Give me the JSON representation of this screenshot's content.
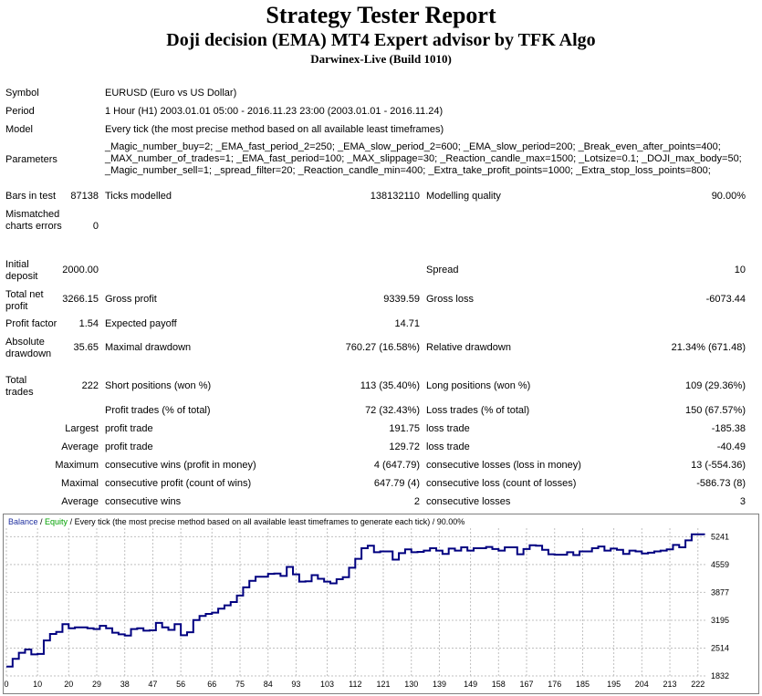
{
  "header": {
    "title": "Strategy Tester Report",
    "subtitle": "Doji decision (EMA) MT4 Expert advisor by TFK Algo",
    "server": "Darwinex-Live (Build 1010)"
  },
  "info": {
    "symbol_label": "Symbol",
    "symbol_value": "EURUSD (Euro vs US Dollar)",
    "period_label": "Period",
    "period_value": "1 Hour (H1) 2003.01.01 05:00 - 2016.11.23 23:00 (2003.01.01 - 2016.11.24)",
    "model_label": "Model",
    "model_value": "Every tick (the most precise method based on all available least timeframes)",
    "parameters_label": "Parameters",
    "parameters_line1": "_Magic_number_buy=2; _EMA_fast_period_2=250; _EMA_slow_period_2=600; _EMA_slow_period=200; _Break_even_after_points=400;",
    "parameters_line2": "_MAX_number_of_trades=1; _EMA_fast_period=100; _MAX_slippage=30; _Reaction_candle_max=1500; _Lotsize=0.1; _DOJI_max_body=50;",
    "parameters_line3": "_Magic_number_sell=1; _spread_filter=20; _Reaction_candle_min=400; _Extra_take_profit_points=1000; _Extra_stop_loss_points=800;"
  },
  "stats": {
    "bars_label": "Bars in test",
    "bars_value": "87138",
    "ticks_label": "Ticks modelled",
    "ticks_value": "138132110",
    "quality_label": "Modelling quality",
    "quality_value": "90.00%",
    "mismatch_label": "Mismatched charts errors",
    "mismatch_value": "0",
    "deposit_label": "Initial deposit",
    "deposit_value": "2000.00",
    "spread_label": "Spread",
    "spread_value": "10",
    "netprofit_label": "Total net profit",
    "netprofit_value": "3266.15",
    "grossprofit_label": "Gross profit",
    "grossprofit_value": "9339.59",
    "grossloss_label": "Gross loss",
    "grossloss_value": "-6073.44",
    "pf_label": "Profit factor",
    "pf_value": "1.54",
    "payoff_label": "Expected payoff",
    "payoff_value": "14.71",
    "absdd_label": "Absolute drawdown",
    "absdd_value": "35.65",
    "maxdd_label": "Maximal drawdown",
    "maxdd_value": "760.27 (16.58%)",
    "reldd_label": "Relative drawdown",
    "reldd_value": "21.34% (671.48)",
    "trades_label": "Total trades",
    "trades_value": "222",
    "short_label": "Short positions (won %)",
    "short_value": "113 (35.40%)",
    "long_label": "Long positions (won %)",
    "long_value": "109 (29.36%)",
    "profittr_label": "Profit trades (% of total)",
    "profittr_value": "72 (32.43%)",
    "losstr_label": "Loss trades (% of total)",
    "losstr_value": "150 (67.57%)",
    "largest_label": "Largest",
    "largest_profit_label": "profit trade",
    "largest_profit_value": "191.75",
    "largest_loss_label": "loss trade",
    "largest_loss_value": "-185.38",
    "average_label": "Average",
    "average_profit_label": "profit trade",
    "average_profit_value": "129.72",
    "average_loss_label": "loss trade",
    "average_loss_value": "-40.49",
    "maximum_label": "Maximum",
    "max_wins_label": "consecutive wins (profit in money)",
    "max_wins_value": "4 (647.79)",
    "max_losses_label": "consecutive losses (loss in money)",
    "max_losses_value": "13 (-554.36)",
    "maximal_label": "Maximal",
    "maximal_profit_label": "consecutive profit (count of wins)",
    "maximal_profit_value": "647.79 (4)",
    "maximal_loss_label": "consecutive loss (count of losses)",
    "maximal_loss_value": "-586.73 (8)",
    "avgcons_label": "Average",
    "avg_wins_label": "consecutive wins",
    "avg_wins_value": "2",
    "avg_losses_label": "consecutive losses",
    "avg_losses_value": "3"
  },
  "chart_data": {
    "type": "line",
    "legend_balance": "Balance",
    "legend_sep": " / ",
    "legend_equity": "Equity",
    "legend_rest": " / Every tick (the most precise method based on all available least timeframes to generate each tick) / 90.00%",
    "colors": {
      "balance": "#000080",
      "equity": "#00a000",
      "grid": "#c0c0c0",
      "legend_balance": "#1f2f9f"
    },
    "grid": true,
    "xlim": [
      0,
      225
    ],
    "ylim": [
      1832,
      5450
    ],
    "x_ticks": [
      0,
      10,
      20,
      29,
      38,
      47,
      56,
      66,
      75,
      84,
      93,
      103,
      112,
      121,
      130,
      139,
      149,
      158,
      167,
      176,
      185,
      195,
      204,
      213,
      222
    ],
    "y_ticks": [
      1832,
      2514,
      3195,
      3877,
      4559,
      5241
    ],
    "series": [
      {
        "name": "Balance",
        "x": [
          0,
          2,
          4,
          6,
          8,
          10,
          12,
          14,
          16,
          18,
          20,
          22,
          24,
          26,
          28,
          30,
          32,
          34,
          36,
          38,
          40,
          42,
          44,
          46,
          48,
          50,
          52,
          54,
          56,
          58,
          60,
          62,
          64,
          66,
          68,
          70,
          72,
          74,
          76,
          78,
          80,
          82,
          84,
          86,
          88,
          90,
          92,
          94,
          96,
          98,
          100,
          102,
          104,
          106,
          108,
          110,
          112,
          114,
          116,
          118,
          120,
          122,
          124,
          126,
          128,
          130,
          132,
          134,
          136,
          138,
          140,
          142,
          144,
          146,
          148,
          150,
          152,
          154,
          156,
          158,
          160,
          162,
          164,
          166,
          168,
          170,
          172,
          174,
          176,
          178,
          180,
          182,
          184,
          186,
          188,
          190,
          192,
          194,
          196,
          198,
          200,
          202,
          204,
          206,
          208,
          210,
          212,
          214,
          216,
          218,
          220,
          222,
          224
        ],
        "values": [
          2060,
          2250,
          2400,
          2480,
          2360,
          2370,
          2700,
          2860,
          2910,
          3100,
          3000,
          3020,
          3020,
          3000,
          2980,
          3060,
          3000,
          2890,
          2850,
          2820,
          2980,
          3000,
          2940,
          2950,
          3130,
          3020,
          2960,
          3100,
          2830,
          2900,
          3200,
          3300,
          3350,
          3380,
          3480,
          3560,
          3640,
          3800,
          4000,
          4160,
          4260,
          4260,
          4330,
          4340,
          4280,
          4500,
          4320,
          4140,
          4150,
          4300,
          4210,
          4140,
          4100,
          4200,
          4250,
          4480,
          4700,
          4960,
          5020,
          4860,
          4880,
          4880,
          4680,
          4840,
          4930,
          4860,
          4870,
          4900,
          4960,
          4900,
          4820,
          4950,
          4900,
          4980,
          4900,
          4960,
          4960,
          4990,
          4940,
          4900,
          4980,
          4980,
          4810,
          4940,
          5030,
          5020,
          4920,
          4810,
          4800,
          4800,
          4860,
          4790,
          4880,
          4880,
          4960,
          5000,
          4900,
          4950,
          4920,
          4820,
          4900,
          4880,
          4830,
          4850,
          4880,
          4900,
          4930,
          5040,
          4980,
          5150,
          5300,
          5300,
          5280
        ]
      }
    ]
  }
}
